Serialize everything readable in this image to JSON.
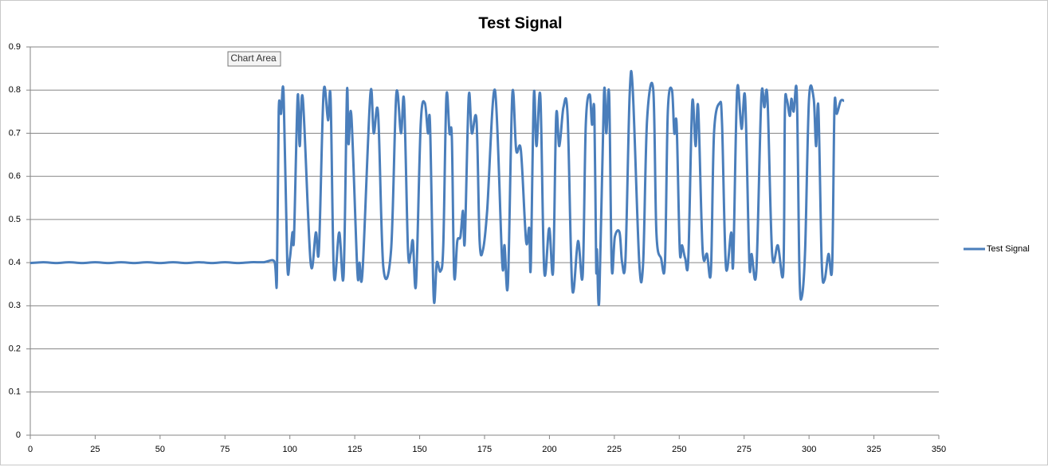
{
  "chart_data": {
    "type": "line",
    "title": "Test Signal",
    "tooltip": "Chart Area",
    "xlim": [
      0,
      350
    ],
    "xticks": [
      0,
      25,
      50,
      75,
      100,
      125,
      150,
      175,
      200,
      225,
      250,
      275,
      300,
      325,
      350
    ],
    "ylim": [
      0,
      0.9
    ],
    "yticks": [
      0,
      0.1,
      0.2,
      0.3,
      0.4,
      0.5,
      0.6,
      0.7,
      0.8,
      0.9
    ],
    "grid": true,
    "legend": "right",
    "smooth": true,
    "x": [
      0,
      5,
      10,
      15,
      20,
      25,
      30,
      35,
      40,
      45,
      50,
      55,
      60,
      65,
      70,
      75,
      80,
      85,
      90,
      94,
      95,
      95.7,
      96.6,
      97.6,
      99,
      100,
      101,
      101.6,
      103,
      103.8,
      105,
      108,
      110,
      111.2,
      113,
      114.7,
      115.7,
      117,
      119,
      120.7,
      122,
      122.6,
      123.7,
      126,
      126.8,
      128,
      131,
      132.3,
      134,
      136,
      139,
      141,
      142.8,
      144,
      145.5,
      146.5,
      147.4,
      148.6,
      150.4,
      152,
      153.2,
      154,
      155.4,
      156.6,
      158,
      159.1,
      160.3,
      161.5,
      162.4,
      163.3,
      164.5,
      165.7,
      166.7,
      167.4,
      168.9,
      170.1,
      171.9,
      173.1,
      174.4,
      176,
      179,
      181.8,
      182.7,
      184,
      185.7,
      187.2,
      189,
      191,
      192.2,
      192.8,
      194,
      195,
      196.5,
      198,
      199.9,
      201.4,
      202.6,
      203.8,
      205.4,
      207,
      208.8,
      211,
      212.8,
      214,
      215.5,
      216.4,
      217.3,
      218,
      218.3,
      219.2,
      221,
      221.9,
      223,
      224,
      225.2,
      227,
      228,
      229.3,
      230.9,
      232.1,
      234.6,
      236.1,
      237.6,
      240,
      241.2,
      243,
      244.5,
      245.6,
      247.2,
      248.1,
      249,
      250.2,
      251.1,
      252.3,
      253.5,
      255,
      256.3,
      257.3,
      259,
      260.7,
      262.2,
      263.4,
      265.6,
      266.5,
      268,
      270,
      270.8,
      272.3,
      274,
      275.4,
      277,
      277.9,
      279.7,
      281.6,
      282.8,
      284,
      285.8,
      288,
      290.1,
      290.7,
      291.4,
      292.6,
      293.2,
      294.1,
      295.3,
      296.3,
      297.2,
      298.5,
      300,
      301.8,
      302.7,
      303.6,
      304.9,
      306,
      307.5,
      308.9,
      309.8,
      310.7,
      312.2,
      313.5
    ],
    "series": [
      {
        "name": "Test Signal",
        "color": "#4a7ebb",
        "values": [
          0.399,
          0.401,
          0.399,
          0.401,
          0.399,
          0.401,
          0.399,
          0.401,
          0.399,
          0.401,
          0.399,
          0.401,
          0.399,
          0.401,
          0.399,
          0.401,
          0.399,
          0.401,
          0.401,
          0.403,
          0.36,
          0.75,
          0.745,
          0.79,
          0.4,
          0.41,
          0.47,
          0.46,
          0.785,
          0.67,
          0.78,
          0.4,
          0.47,
          0.43,
          0.795,
          0.73,
          0.78,
          0.37,
          0.47,
          0.37,
          0.795,
          0.675,
          0.74,
          0.38,
          0.4,
          0.38,
          0.79,
          0.7,
          0.745,
          0.39,
          0.43,
          0.79,
          0.7,
          0.775,
          0.43,
          0.42,
          0.45,
          0.35,
          0.72,
          0.77,
          0.7,
          0.72,
          0.32,
          0.4,
          0.38,
          0.44,
          0.785,
          0.7,
          0.69,
          0.37,
          0.45,
          0.46,
          0.52,
          0.45,
          0.785,
          0.7,
          0.73,
          0.45,
          0.43,
          0.52,
          0.8,
          0.4,
          0.44,
          0.35,
          0.79,
          0.66,
          0.66,
          0.45,
          0.48,
          0.39,
          0.79,
          0.67,
          0.785,
          0.38,
          0.48,
          0.38,
          0.74,
          0.67,
          0.76,
          0.74,
          0.34,
          0.45,
          0.37,
          0.72,
          0.79,
          0.72,
          0.75,
          0.39,
          0.43,
          0.315,
          0.79,
          0.7,
          0.79,
          0.39,
          0.46,
          0.47,
          0.4,
          0.41,
          0.79,
          0.8,
          0.4,
          0.4,
          0.73,
          0.8,
          0.47,
          0.41,
          0.4,
          0.75,
          0.8,
          0.7,
          0.72,
          0.43,
          0.44,
          0.41,
          0.41,
          0.77,
          0.67,
          0.76,
          0.43,
          0.42,
          0.38,
          0.7,
          0.77,
          0.72,
          0.39,
          0.47,
          0.4,
          0.8,
          0.71,
          0.78,
          0.4,
          0.42,
          0.38,
          0.78,
          0.76,
          0.78,
          0.42,
          0.44,
          0.38,
          0.75,
          0.78,
          0.74,
          0.78,
          0.75,
          0.79,
          0.38,
          0.32,
          0.43,
          0.78,
          0.78,
          0.67,
          0.76,
          0.4,
          0.36,
          0.42,
          0.39,
          0.76,
          0.745,
          0.775,
          0.775
        ]
      }
    ]
  }
}
